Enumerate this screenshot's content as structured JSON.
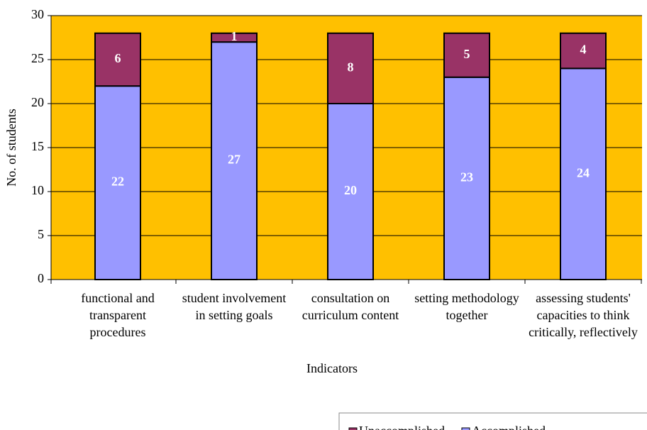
{
  "chart_data": {
    "type": "stacked_bar",
    "x_label": "Indicators",
    "y_label": "No. of students",
    "categories": [
      "functional and transparent procedures",
      "student involvement in setting goals",
      "consultation on curriculum content",
      "setting methodology together",
      "assessing students' capacities to think critically, reflectively"
    ],
    "series": [
      {
        "name": "Accomplished",
        "color": "#9999ff",
        "values": [
          22,
          27,
          20,
          23,
          24
        ]
      },
      {
        "name": "Unaccomplished",
        "color": "#993366",
        "values": [
          6,
          1,
          8,
          5,
          4
        ]
      }
    ],
    "ylim": [
      0,
      30
    ],
    "yticks": [
      0,
      5,
      10,
      15,
      20,
      25,
      30
    ],
    "grid": true,
    "background": "#ffc000",
    "legend": "bottom-right"
  }
}
